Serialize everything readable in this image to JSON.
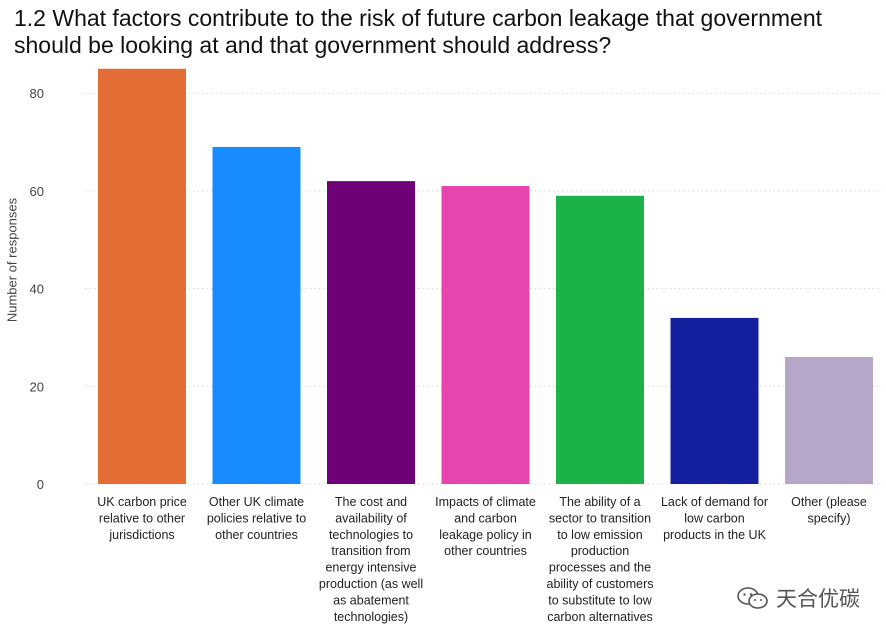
{
  "title": "1.2 What factors contribute to the risk of future carbon leakage that government should be looking at and that government should address?",
  "watermark": {
    "text": "天合优碳",
    "icon": "wechat-icon"
  },
  "chart_data": {
    "type": "bar",
    "ylabel": "Number of responses",
    "xlabel": "",
    "ylim": [
      0,
      86
    ],
    "yticks": [
      0,
      20,
      40,
      60,
      80
    ],
    "grid": true,
    "categories": [
      [
        "UK carbon price",
        "relative to other",
        "jurisdictions"
      ],
      [
        "Other UK climate",
        "policies relative to",
        "other countries"
      ],
      [
        "The cost and",
        "availability of",
        "technologies to",
        "transition from",
        "energy intensive",
        "production (as well",
        "as abatement",
        "technologies)"
      ],
      [
        "Impacts of climate",
        "and carbon",
        "leakage policy in",
        "other countries"
      ],
      [
        "The ability of a",
        "sector to transition",
        "to low emission",
        "production",
        "processes and the",
        "ability of customers",
        "to substitute to low",
        "carbon alternatives"
      ],
      [
        "Lack of demand for",
        "low carbon",
        "products in the UK"
      ],
      [
        "Other (please",
        "specify)"
      ]
    ],
    "values": [
      85,
      69,
      62,
      61,
      59,
      34,
      26
    ],
    "colors": [
      "#E46C35",
      "#178BFF",
      "#6E0078",
      "#E645AE",
      "#1BB24A",
      "#14219E",
      "#B6A6C8"
    ]
  }
}
